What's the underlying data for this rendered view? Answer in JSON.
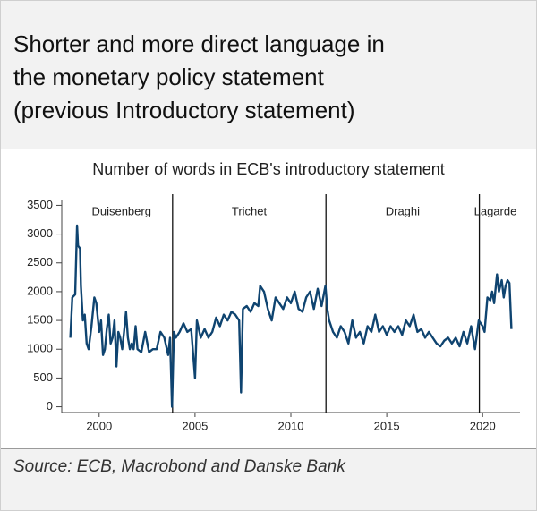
{
  "chart_data": {
    "type": "line",
    "title": [
      "Shorter and more direct language in",
      "the monetary policy statement",
      "(previous Introductory statement)"
    ],
    "subtitle": "Number of words in ECB's introductory statement",
    "source": "Source: ECB, Macrobond and Danske Bank",
    "x": [
      1998.5,
      1998.6,
      1998.75,
      1998.85,
      1998.9,
      1999.0,
      1999.05,
      1999.15,
      1999.25,
      1999.35,
      1999.45,
      1999.6,
      1999.75,
      1999.85,
      2000.0,
      2000.1,
      2000.2,
      2000.3,
      2000.4,
      2000.5,
      2000.6,
      2000.7,
      2000.8,
      2000.9,
      2001.0,
      2001.1,
      2001.2,
      2001.3,
      2001.4,
      2001.5,
      2001.6,
      2001.7,
      2001.8,
      2001.9,
      2002.0,
      2002.2,
      2002.4,
      2002.6,
      2002.8,
      2003.0,
      2003.2,
      2003.4,
      2003.6,
      2003.7,
      2003.8,
      2003.9,
      2004.0,
      2004.2,
      2004.4,
      2004.6,
      2004.8,
      2005.0,
      2005.1,
      2005.3,
      2005.5,
      2005.7,
      2005.9,
      2006.1,
      2006.3,
      2006.5,
      2006.7,
      2006.9,
      2007.1,
      2007.3,
      2007.4,
      2007.5,
      2007.7,
      2007.9,
      2008.1,
      2008.3,
      2008.4,
      2008.6,
      2008.8,
      2009.0,
      2009.2,
      2009.4,
      2009.6,
      2009.8,
      2010.0,
      2010.2,
      2010.4,
      2010.6,
      2010.8,
      2011.0,
      2011.2,
      2011.4,
      2011.6,
      2011.8,
      2011.9,
      2012.0,
      2012.2,
      2012.4,
      2012.6,
      2012.8,
      2013.0,
      2013.2,
      2013.4,
      2013.6,
      2013.8,
      2014.0,
      2014.2,
      2014.4,
      2014.6,
      2014.8,
      2015.0,
      2015.2,
      2015.4,
      2015.6,
      2015.8,
      2016.0,
      2016.2,
      2016.4,
      2016.6,
      2016.8,
      2017.0,
      2017.2,
      2017.4,
      2017.6,
      2017.8,
      2018.0,
      2018.2,
      2018.4,
      2018.6,
      2018.8,
      2019.0,
      2019.2,
      2019.4,
      2019.6,
      2019.8,
      2020.0,
      2020.1,
      2020.25,
      2020.4,
      2020.5,
      2020.6,
      2020.75,
      2020.85,
      2021.0,
      2021.1,
      2021.2,
      2021.3,
      2021.4,
      2021.5
    ],
    "series": [
      {
        "color": "#0f4470",
        "values": [
          1200,
          1900,
          1950,
          3150,
          2800,
          2750,
          2100,
          1500,
          1600,
          1100,
          1000,
          1400,
          1900,
          1800,
          1300,
          1500,
          900,
          1000,
          1350,
          1600,
          1100,
          1200,
          1500,
          700,
          1300,
          1200,
          1000,
          1300,
          1650,
          1200,
          1000,
          1100,
          1000,
          1400,
          1000,
          950,
          1300,
          950,
          1000,
          1000,
          1300,
          1200,
          900,
          1200,
          0,
          1300,
          1200,
          1300,
          1450,
          1300,
          1350,
          500,
          1500,
          1200,
          1350,
          1200,
          1300,
          1550,
          1400,
          1600,
          1500,
          1650,
          1600,
          1500,
          250,
          1700,
          1750,
          1650,
          1800,
          1750,
          2100,
          2000,
          1700,
          1500,
          1900,
          1800,
          1700,
          1900,
          1800,
          2000,
          1700,
          1650,
          1900,
          2000,
          1700,
          2050,
          1750,
          2100,
          1700,
          1500,
          1300,
          1200,
          1400,
          1300,
          1100,
          1500,
          1200,
          1300,
          1100,
          1400,
          1300,
          1600,
          1300,
          1400,
          1250,
          1400,
          1300,
          1400,
          1250,
          1500,
          1400,
          1600,
          1300,
          1350,
          1200,
          1300,
          1200,
          1100,
          1050,
          1150,
          1200,
          1100,
          1200,
          1050,
          1300,
          1100,
          1400,
          1000,
          1500,
          1400,
          1300,
          1900,
          1850,
          2000,
          1800,
          2300,
          2000,
          2200,
          1900,
          2100,
          2200,
          2150,
          1350
        ]
      }
    ],
    "presidents": [
      "Duisenberg",
      "Trichet",
      "Draghi",
      "Lagarde"
    ],
    "president_changes": [
      2003.83,
      2011.83,
      2019.83
    ],
    "xlim": [
      1998.05,
      2021.95
    ],
    "ylim": [
      -100,
      3600
    ],
    "xticks": [
      2000,
      2005,
      2010,
      2015,
      2020
    ],
    "yticks": [
      0,
      500,
      1000,
      1500,
      2000,
      2500,
      3000,
      3500
    ]
  }
}
